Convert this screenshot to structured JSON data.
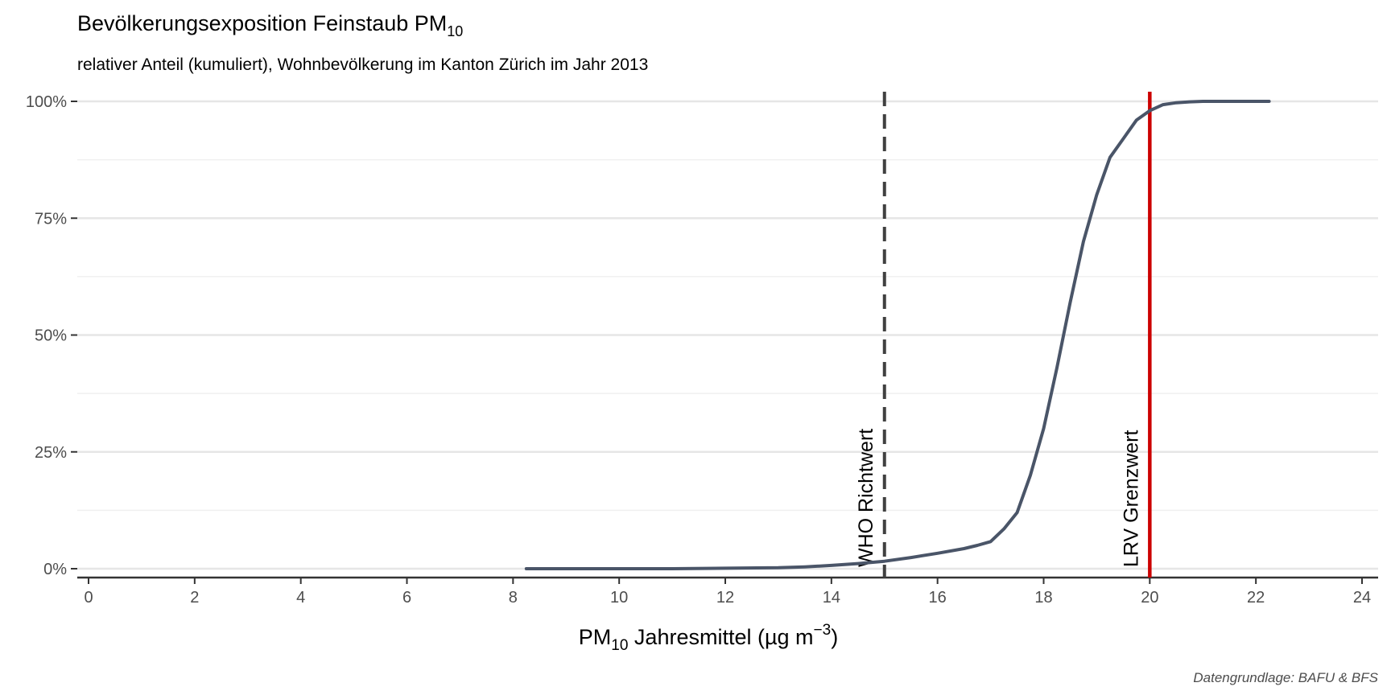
{
  "chart_data": {
    "type": "line",
    "title": "Bevölkerungsexposition Feinstaub PM",
    "title_sub": "10",
    "subtitle": "relativer Anteil (kumuliert), Wohnbevölkerung im Kanton Zürich im Jahr 2013",
    "xlabel_pre": "PM",
    "xlabel_sub": "10",
    "xlabel_post": " Jahresmittel (µg m",
    "xlabel_sup": "−3",
    "xlabel_end": ")",
    "caption": "Datengrundlage: BAFU & BFS",
    "xlim": [
      0,
      24
    ],
    "ylim": [
      0,
      1
    ],
    "x_ticks": [
      0,
      2,
      4,
      6,
      8,
      10,
      12,
      14,
      16,
      18,
      20,
      22,
      24
    ],
    "x_tick_labels": [
      "0",
      "2",
      "4",
      "6",
      "8",
      "10",
      "12",
      "14",
      "16",
      "18",
      "20",
      "22",
      "24"
    ],
    "y_ticks": [
      0,
      0.25,
      0.5,
      0.75,
      1
    ],
    "y_tick_labels": [
      "0%",
      "25%",
      "50%",
      "75%",
      "100%"
    ],
    "y_minor_ticks": [
      0.125,
      0.375,
      0.625,
      0.875
    ],
    "grid": true,
    "line_color": "#4a5568",
    "series": [
      {
        "x": [
          8.25,
          9,
          10,
          11,
          12,
          13,
          13.5,
          14,
          14.5,
          15,
          15.5,
          16,
          16.5,
          16.75,
          17,
          17.25,
          17.5,
          17.75,
          18,
          18.25,
          18.5,
          18.75,
          19,
          19.25,
          19.5,
          19.75,
          20,
          20.25,
          20.5,
          20.75,
          21,
          21.5,
          22,
          22.25
        ],
        "y": [
          0,
          0,
          0,
          0,
          0.001,
          0.002,
          0.004,
          0.007,
          0.011,
          0.016,
          0.024,
          0.033,
          0.043,
          0.05,
          0.058,
          0.085,
          0.12,
          0.2,
          0.3,
          0.43,
          0.57,
          0.7,
          0.8,
          0.88,
          0.92,
          0.96,
          0.98,
          0.993,
          0.997,
          0.999,
          1,
          1,
          1,
          1
        ]
      }
    ],
    "reference_lines": [
      {
        "x": 15,
        "label": "WHO Richtwert",
        "color": "#404040",
        "dashed": true
      },
      {
        "x": 20,
        "label": "LRV Grenzwert",
        "color": "#cc0000",
        "dashed": false
      }
    ]
  }
}
